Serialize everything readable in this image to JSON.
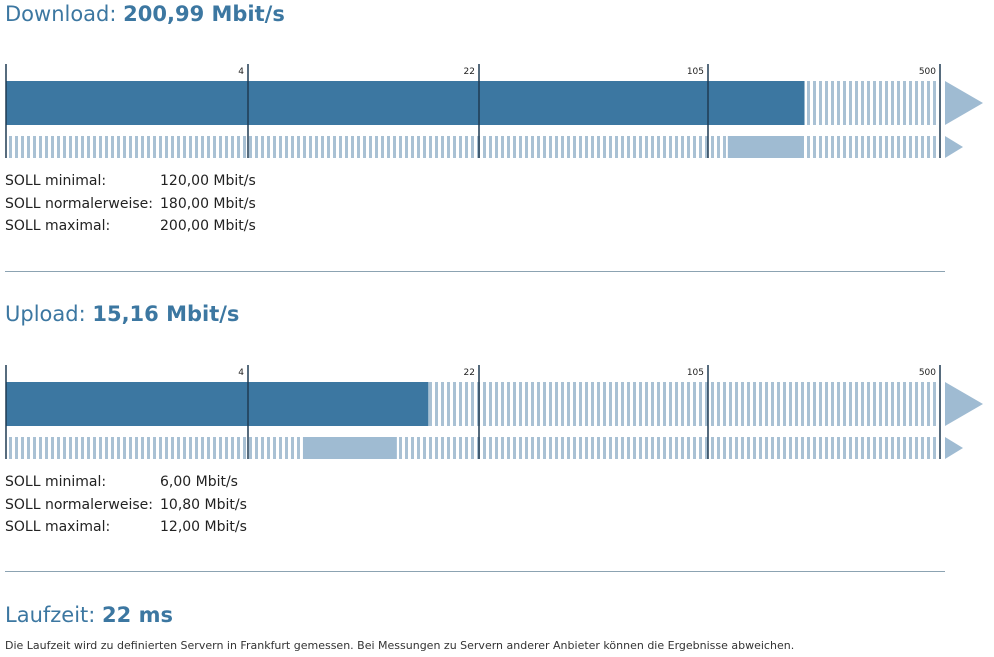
{
  "scale_ticks": [
    "4",
    "22",
    "105",
    "500"
  ],
  "download": {
    "label": "Download:",
    "value": "200,99 Mbit/s",
    "measured_mbit": 200.99,
    "soll": [
      {
        "label": "SOLL minimal:",
        "value": "120,00 Mbit/s"
      },
      {
        "label": "SOLL normalerweise:",
        "value": "180,00 Mbit/s"
      },
      {
        "label": "SOLL maximal:",
        "value": "200,00 Mbit/s"
      }
    ],
    "soll_min_mbit": 120,
    "soll_max_mbit": 200
  },
  "upload": {
    "label": "Upload:",
    "value": "15,16 Mbit/s",
    "measured_mbit": 15.16,
    "soll": [
      {
        "label": "SOLL minimal:",
        "value": "6,00 Mbit/s"
      },
      {
        "label": "SOLL normalerweise:",
        "value": "10,80 Mbit/s"
      },
      {
        "label": "SOLL maximal:",
        "value": "12,00 Mbit/s"
      }
    ],
    "soll_min_mbit": 6,
    "soll_max_mbit": 12
  },
  "latency": {
    "label": "Laufzeit:",
    "value": "22 ms",
    "note": "Die Laufzeit wird zu definierten Servern in Frankfurt gemessen. Bei Messungen zu Servern anderer Anbieter können die Ergebnisse abweichen."
  },
  "colors": {
    "accent": "#3c77a1",
    "range": "#9fbbd2",
    "stripe": "#a9c1d4",
    "tick": "#1f3b52"
  }
}
